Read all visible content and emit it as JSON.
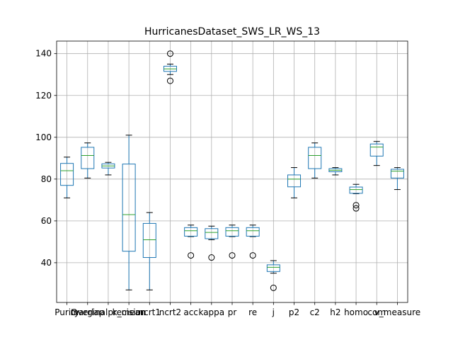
{
  "chart_data": {
    "type": "box",
    "title": "HurricanesDataset_SWS_LR_WS_13",
    "ylim": [
      21,
      146
    ],
    "yticks": [
      40,
      60,
      80,
      100,
      120,
      140
    ],
    "grid": true,
    "colors": {
      "box": "#1f77b4",
      "median": "#2ca02c",
      "grid": "#b0b0b0",
      "flier": "#000000"
    },
    "categories": [
      "Purity",
      "Overlap",
      "marginalprecision",
      "k_mean",
      "ncrt1",
      "ncrt2",
      "acc",
      "kappa",
      "pr",
      "re",
      "j",
      "p2",
      "c2",
      "h2",
      "homo",
      "com",
      "v_measure"
    ],
    "series": [
      {
        "name": "",
        "boxes": [
          {
            "low": 71,
            "q1": 77,
            "median": 84,
            "q3": 87.5,
            "high": 90.5,
            "fliers": []
          },
          {
            "low": 80.5,
            "q1": 85,
            "median": 91.3,
            "q3": 95.2,
            "high": 97.3,
            "fliers": []
          },
          {
            "low": 82,
            "q1": 85.3,
            "median": 86.3,
            "q3": 87.3,
            "high": 88,
            "fliers": []
          },
          {
            "low": 27,
            "q1": 45.5,
            "median": 63,
            "q3": 87.2,
            "high": 101,
            "fliers": []
          },
          {
            "low": 27,
            "q1": 42.5,
            "median": 51,
            "q3": 58.8,
            "high": 64,
            "fliers": []
          },
          {
            "low": 130,
            "q1": 131.5,
            "median": 132.7,
            "q3": 134,
            "high": 135,
            "fliers": [
              140,
              127
            ]
          },
          {
            "low": 52.5,
            "q1": 52.7,
            "median": 55.3,
            "q3": 56.8,
            "high": 58,
            "fliers": [
              43.5
            ]
          },
          {
            "low": 51,
            "q1": 51.5,
            "median": 54.5,
            "q3": 56.3,
            "high": 57.5,
            "fliers": [
              42.5
            ]
          },
          {
            "low": 52.5,
            "q1": 52.7,
            "median": 55.3,
            "q3": 56.8,
            "high": 58,
            "fliers": [
              43.5
            ]
          },
          {
            "low": 52.5,
            "q1": 52.7,
            "median": 55.3,
            "q3": 56.8,
            "high": 58,
            "fliers": [
              43.5
            ]
          },
          {
            "low": 35,
            "q1": 35.8,
            "median": 37.8,
            "q3": 39,
            "high": 41,
            "fliers": [
              28
            ]
          },
          {
            "low": 71,
            "q1": 76.3,
            "median": 80,
            "q3": 82,
            "high": 85.5,
            "fliers": []
          },
          {
            "low": 80.5,
            "q1": 85,
            "median": 91.3,
            "q3": 95.2,
            "high": 97.3,
            "fliers": []
          },
          {
            "low": 82,
            "q1": 83.5,
            "median": 84.2,
            "q3": 85,
            "high": 85.5,
            "fliers": []
          },
          {
            "low": 73,
            "q1": 73.2,
            "median": 75,
            "q3": 76.2,
            "high": 77.5,
            "fliers": [
              67.5,
              66
            ]
          },
          {
            "low": 86.5,
            "q1": 91,
            "median": 95.3,
            "q3": 96.8,
            "high": 98,
            "fliers": []
          },
          {
            "low": 75,
            "q1": 80.5,
            "median": 83.8,
            "q3": 84.7,
            "high": 85.5,
            "fliers": []
          }
        ]
      }
    ]
  }
}
